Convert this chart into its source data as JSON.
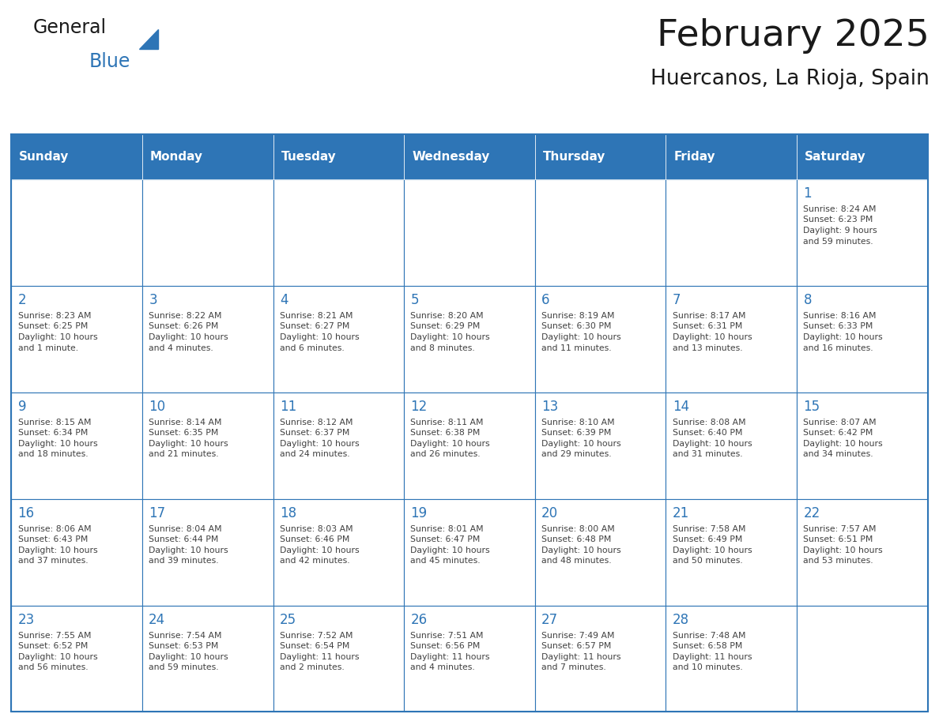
{
  "title": "February 2025",
  "subtitle": "Huercanos, La Rioja, Spain",
  "days_of_week": [
    "Sunday",
    "Monday",
    "Tuesday",
    "Wednesday",
    "Thursday",
    "Friday",
    "Saturday"
  ],
  "header_bg": "#2E75B6",
  "header_text": "#FFFFFF",
  "cell_bg": "#FFFFFF",
  "border_color": "#2E75B6",
  "day_num_color": "#2E75B6",
  "cell_text_color": "#404040",
  "title_color": "#1a1a1a",
  "subtitle_color": "#1a1a1a",
  "week_rows": [
    [
      {
        "day": null,
        "info": null
      },
      {
        "day": null,
        "info": null
      },
      {
        "day": null,
        "info": null
      },
      {
        "day": null,
        "info": null
      },
      {
        "day": null,
        "info": null
      },
      {
        "day": null,
        "info": null
      },
      {
        "day": 1,
        "info": "Sunrise: 8:24 AM\nSunset: 6:23 PM\nDaylight: 9 hours\nand 59 minutes."
      }
    ],
    [
      {
        "day": 2,
        "info": "Sunrise: 8:23 AM\nSunset: 6:25 PM\nDaylight: 10 hours\nand 1 minute."
      },
      {
        "day": 3,
        "info": "Sunrise: 8:22 AM\nSunset: 6:26 PM\nDaylight: 10 hours\nand 4 minutes."
      },
      {
        "day": 4,
        "info": "Sunrise: 8:21 AM\nSunset: 6:27 PM\nDaylight: 10 hours\nand 6 minutes."
      },
      {
        "day": 5,
        "info": "Sunrise: 8:20 AM\nSunset: 6:29 PM\nDaylight: 10 hours\nand 8 minutes."
      },
      {
        "day": 6,
        "info": "Sunrise: 8:19 AM\nSunset: 6:30 PM\nDaylight: 10 hours\nand 11 minutes."
      },
      {
        "day": 7,
        "info": "Sunrise: 8:17 AM\nSunset: 6:31 PM\nDaylight: 10 hours\nand 13 minutes."
      },
      {
        "day": 8,
        "info": "Sunrise: 8:16 AM\nSunset: 6:33 PM\nDaylight: 10 hours\nand 16 minutes."
      }
    ],
    [
      {
        "day": 9,
        "info": "Sunrise: 8:15 AM\nSunset: 6:34 PM\nDaylight: 10 hours\nand 18 minutes."
      },
      {
        "day": 10,
        "info": "Sunrise: 8:14 AM\nSunset: 6:35 PM\nDaylight: 10 hours\nand 21 minutes."
      },
      {
        "day": 11,
        "info": "Sunrise: 8:12 AM\nSunset: 6:37 PM\nDaylight: 10 hours\nand 24 minutes."
      },
      {
        "day": 12,
        "info": "Sunrise: 8:11 AM\nSunset: 6:38 PM\nDaylight: 10 hours\nand 26 minutes."
      },
      {
        "day": 13,
        "info": "Sunrise: 8:10 AM\nSunset: 6:39 PM\nDaylight: 10 hours\nand 29 minutes."
      },
      {
        "day": 14,
        "info": "Sunrise: 8:08 AM\nSunset: 6:40 PM\nDaylight: 10 hours\nand 31 minutes."
      },
      {
        "day": 15,
        "info": "Sunrise: 8:07 AM\nSunset: 6:42 PM\nDaylight: 10 hours\nand 34 minutes."
      }
    ],
    [
      {
        "day": 16,
        "info": "Sunrise: 8:06 AM\nSunset: 6:43 PM\nDaylight: 10 hours\nand 37 minutes."
      },
      {
        "day": 17,
        "info": "Sunrise: 8:04 AM\nSunset: 6:44 PM\nDaylight: 10 hours\nand 39 minutes."
      },
      {
        "day": 18,
        "info": "Sunrise: 8:03 AM\nSunset: 6:46 PM\nDaylight: 10 hours\nand 42 minutes."
      },
      {
        "day": 19,
        "info": "Sunrise: 8:01 AM\nSunset: 6:47 PM\nDaylight: 10 hours\nand 45 minutes."
      },
      {
        "day": 20,
        "info": "Sunrise: 8:00 AM\nSunset: 6:48 PM\nDaylight: 10 hours\nand 48 minutes."
      },
      {
        "day": 21,
        "info": "Sunrise: 7:58 AM\nSunset: 6:49 PM\nDaylight: 10 hours\nand 50 minutes."
      },
      {
        "day": 22,
        "info": "Sunrise: 7:57 AM\nSunset: 6:51 PM\nDaylight: 10 hours\nand 53 minutes."
      }
    ],
    [
      {
        "day": 23,
        "info": "Sunrise: 7:55 AM\nSunset: 6:52 PM\nDaylight: 10 hours\nand 56 minutes."
      },
      {
        "day": 24,
        "info": "Sunrise: 7:54 AM\nSunset: 6:53 PM\nDaylight: 10 hours\nand 59 minutes."
      },
      {
        "day": 25,
        "info": "Sunrise: 7:52 AM\nSunset: 6:54 PM\nDaylight: 11 hours\nand 2 minutes."
      },
      {
        "day": 26,
        "info": "Sunrise: 7:51 AM\nSunset: 6:56 PM\nDaylight: 11 hours\nand 4 minutes."
      },
      {
        "day": 27,
        "info": "Sunrise: 7:49 AM\nSunset: 6:57 PM\nDaylight: 11 hours\nand 7 minutes."
      },
      {
        "day": 28,
        "info": "Sunrise: 7:48 AM\nSunset: 6:58 PM\nDaylight: 11 hours\nand 10 minutes."
      },
      {
        "day": null,
        "info": null
      }
    ]
  ]
}
